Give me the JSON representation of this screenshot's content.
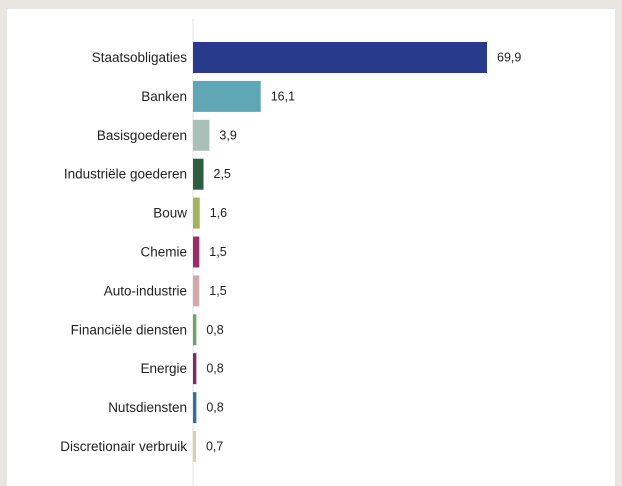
{
  "chart_data": {
    "type": "bar",
    "orientation": "horizontal",
    "categories": [
      "Staatsobligaties",
      "Banken",
      "Basisgoederen",
      "Industriële goederen",
      "Bouw",
      "Chemie",
      "Auto-industrie",
      "Financiële diensten",
      "Energie",
      "Nutsdiensten",
      "Discretionair verbruik"
    ],
    "values": [
      69.9,
      16.1,
      3.9,
      2.5,
      1.6,
      1.5,
      1.5,
      0.8,
      0.8,
      0.8,
      0.7
    ],
    "value_labels": [
      "69,9",
      "16,1",
      "3,9",
      "2,5",
      "1,6",
      "1,5",
      "1,5",
      "0,8",
      "0,8",
      "0,8",
      "0,7"
    ],
    "colors": [
      "#283a8c",
      "#5fa7b4",
      "#a9bfb8",
      "#2f5e40",
      "#a3b55a",
      "#9a2c6a",
      "#d4a7ad",
      "#6ea36a",
      "#7b2d62",
      "#2f6fa4",
      "#d6d1a6"
    ],
    "title": "",
    "xlabel": "",
    "ylabel": "",
    "xlim": [
      0,
      69.9
    ],
    "grid": false,
    "legend": "none"
  }
}
